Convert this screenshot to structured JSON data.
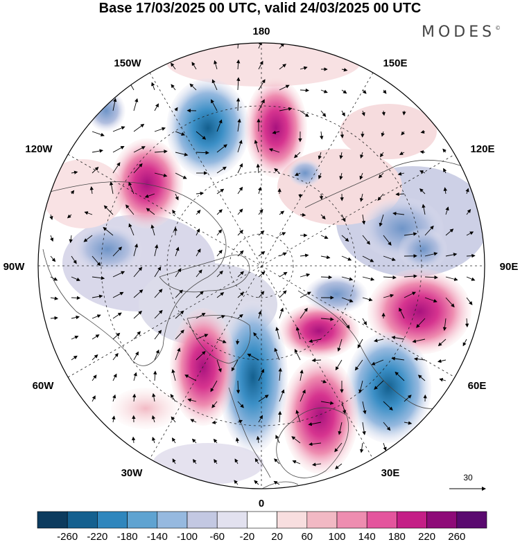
{
  "title": "Base 17/03/2025 00 UTC, valid 24/03/2025 00 UTC",
  "brand": "MODES",
  "brand_mark": "©",
  "longitude_labels": {
    "top": "180",
    "bottom": "0",
    "left": "90W",
    "right": "90E",
    "upper_left": "150W",
    "upper_right": "150E",
    "mid_left": "120W",
    "mid_right": "120E",
    "lower_left": "60W",
    "lower_right": "60E",
    "bottom_left": "30W",
    "bottom_right": "30E"
  },
  "reference_vector_label": "30",
  "colorbar": {
    "ticks": [
      "-260",
      "-220",
      "-180",
      "-140",
      "-100",
      "-60",
      "-20",
      "20",
      "60",
      "100",
      "140",
      "180",
      "220",
      "260"
    ],
    "colors": [
      "#0c3b5e",
      "#14608f",
      "#2f86bd",
      "#5fa3d1",
      "#96b9df",
      "#c3c8e2",
      "#e2e1ef",
      "#ffffff",
      "#f8dedf",
      "#f2b9c4",
      "#ee8db0",
      "#e4559d",
      "#c41f86",
      "#8e0b78",
      "#5a0a6f"
    ]
  },
  "map_features": {
    "pressure_cells": [
      {
        "name": "low-cell",
        "color": "#1f6fa8"
      },
      {
        "name": "high-cell",
        "color": "#c71f86"
      }
    ]
  }
}
